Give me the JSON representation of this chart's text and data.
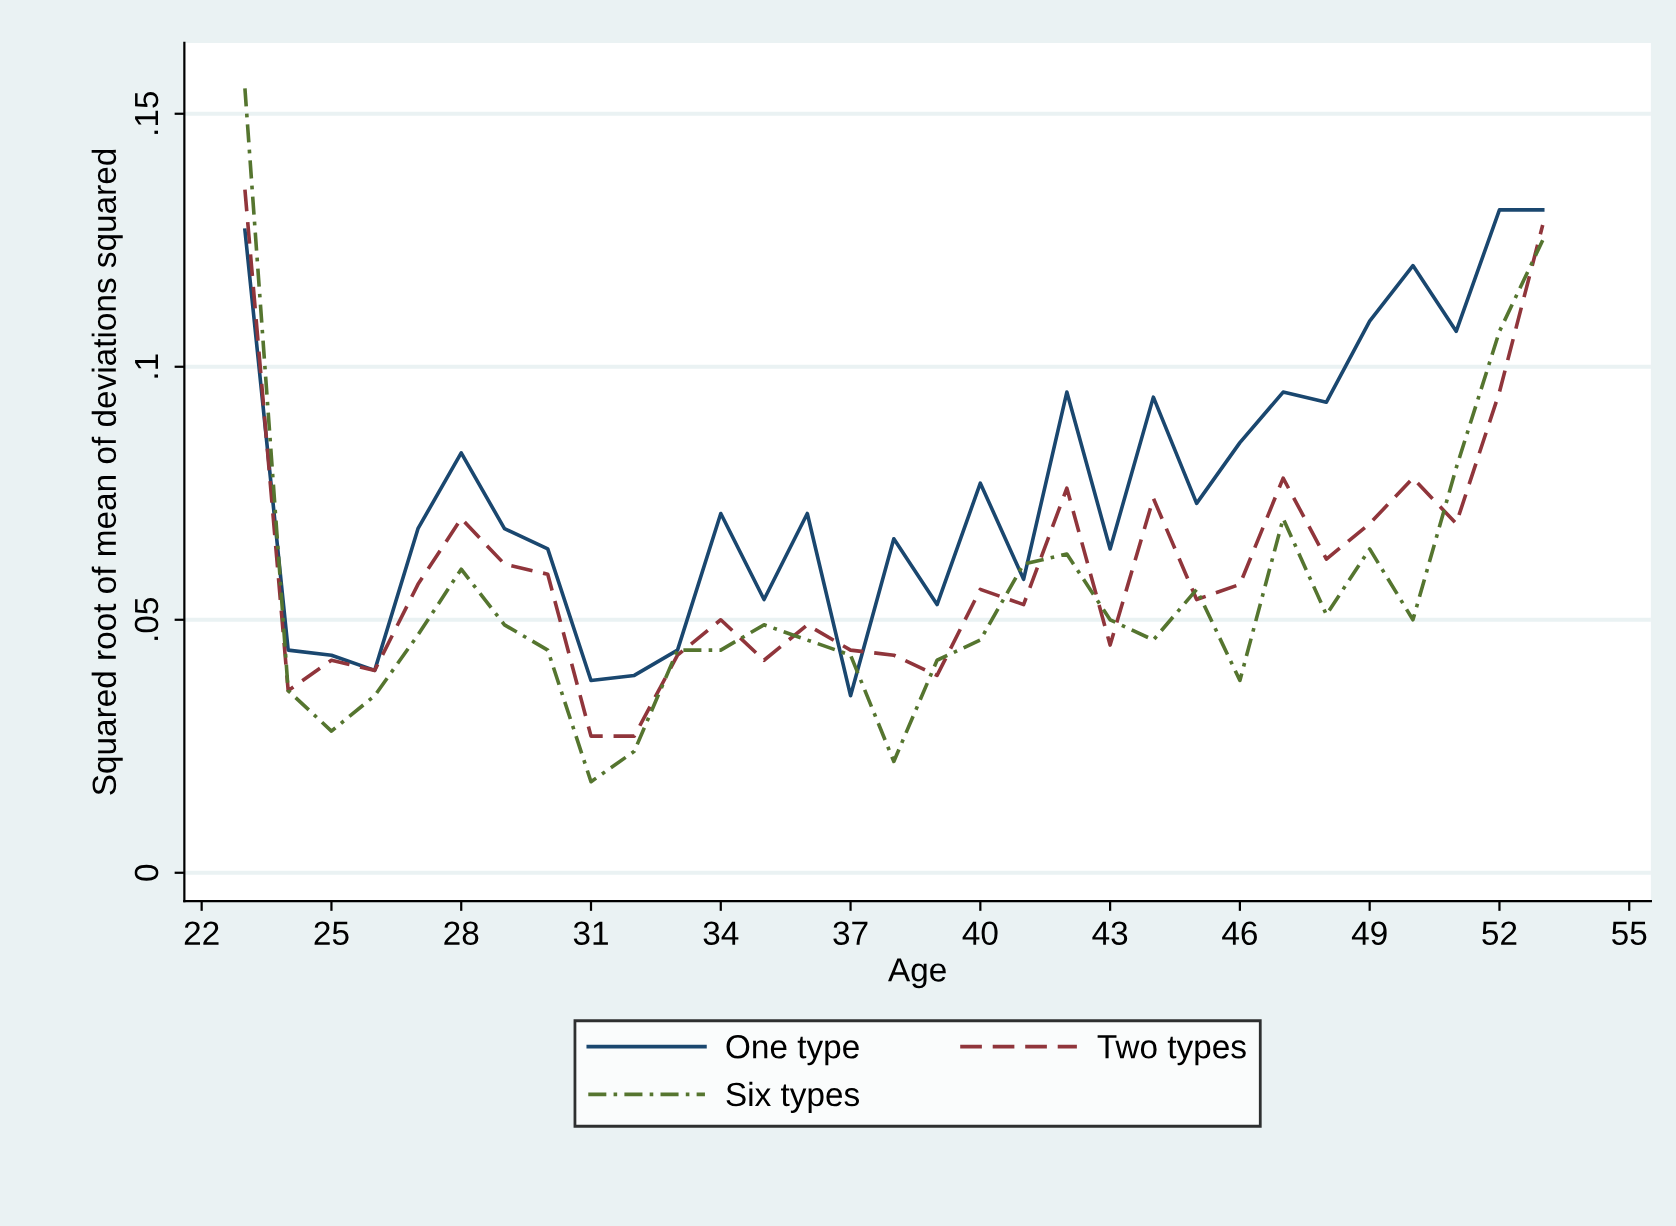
{
  "chart_data": {
    "type": "line",
    "xlabel": "Age",
    "ylabel": "Squared root of mean of deviations squared",
    "x": [
      23,
      24,
      25,
      26,
      27,
      28,
      29,
      30,
      31,
      32,
      33,
      34,
      35,
      36,
      37,
      38,
      39,
      40,
      41,
      42,
      43,
      44,
      45,
      46,
      47,
      48,
      49,
      50,
      51,
      52,
      53
    ],
    "series": [
      {
        "name": "One type",
        "color": "#1a476f",
        "line_style": "solid",
        "values": [
          0.127,
          0.044,
          0.043,
          0.04,
          0.068,
          0.083,
          0.068,
          0.064,
          0.038,
          0.039,
          0.044,
          0.071,
          0.054,
          0.071,
          0.035,
          0.066,
          0.053,
          0.077,
          0.058,
          0.095,
          0.064,
          0.094,
          0.073,
          0.085,
          0.095,
          0.093,
          0.109,
          0.12,
          0.107,
          0.131,
          0.131
        ]
      },
      {
        "name": "Two types",
        "color": "#90353b",
        "line_style": "dashed",
        "values": [
          0.135,
          0.036,
          0.042,
          0.04,
          0.057,
          0.07,
          0.061,
          0.059,
          0.027,
          0.027,
          0.043,
          0.05,
          0.042,
          0.049,
          0.044,
          0.043,
          0.039,
          0.056,
          0.053,
          0.076,
          0.045,
          0.074,
          0.054,
          0.057,
          0.078,
          0.062,
          0.069,
          0.078,
          0.069,
          0.095,
          0.128
        ]
      },
      {
        "name": "Six types",
        "color": "#55752f",
        "line_style": "dashdot",
        "values": [
          0.155,
          0.036,
          0.028,
          0.035,
          0.047,
          0.06,
          0.049,
          0.044,
          0.018,
          0.024,
          0.044,
          0.044,
          0.049,
          0.046,
          0.043,
          0.022,
          0.042,
          0.046,
          0.061,
          0.063,
          0.05,
          0.046,
          0.056,
          0.038,
          0.07,
          0.051,
          0.064,
          0.05,
          0.08,
          0.107,
          0.125
        ]
      }
    ],
    "xlim": [
      21.6,
      55.5
    ],
    "xticks": [
      22,
      25,
      28,
      31,
      34,
      37,
      40,
      43,
      46,
      49,
      52,
      55
    ],
    "ylim": [
      -0.0056,
      0.164
    ],
    "yticks": [
      {
        "value": 0,
        "label": "0"
      },
      {
        "value": 0.05,
        "label": ".05"
      },
      {
        "value": 0.1,
        "label": ".1"
      },
      {
        "value": 0.15,
        "label": ".15"
      }
    ],
    "grid": "y",
    "legend": "bottom"
  }
}
